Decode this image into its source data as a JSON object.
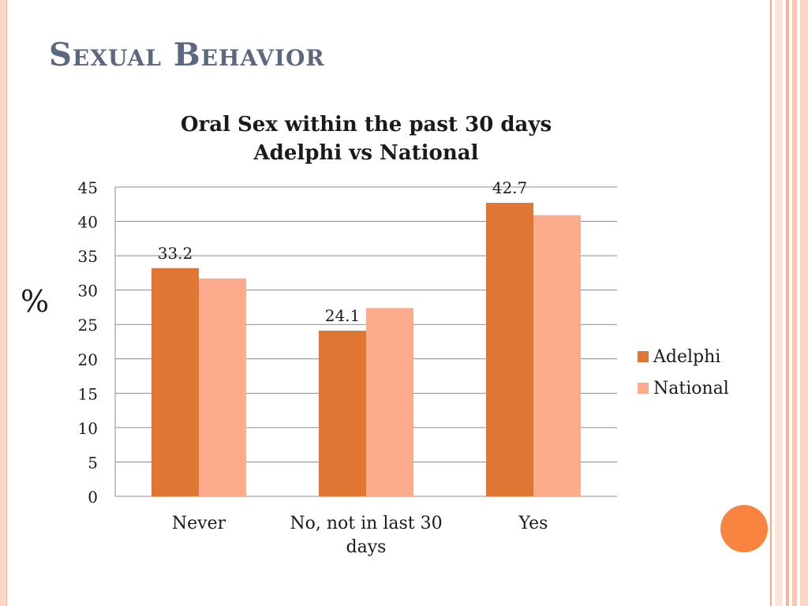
{
  "slide": {
    "title": "Sexual Behavior"
  },
  "theme": {
    "title_color": "#5b6880",
    "adelphi_color": "#e07633",
    "national_color": "#fcac8c",
    "accent_circle": "#f8843f",
    "grid_color": "#8c8c8c"
  },
  "chart_data": {
    "type": "bar",
    "title_lines": [
      "Oral Sex within the past 30 days",
      "Adelphi vs National"
    ],
    "ylabel": "%",
    "xlabel": "",
    "categories": [
      "Never",
      "No, not in last 30 days",
      "Yes"
    ],
    "series": [
      {
        "name": "Adelphi",
        "values": [
          33.2,
          24.1,
          42.7
        ],
        "color": "#e07633",
        "show_labels": true
      },
      {
        "name": "National",
        "values": [
          31.7,
          27.4,
          40.9
        ],
        "color": "#fcac8c",
        "show_labels": false
      }
    ],
    "ylim": [
      0,
      45
    ],
    "yticks": [
      0,
      5,
      10,
      15,
      20,
      25,
      30,
      35,
      40,
      45
    ],
    "grid": true,
    "legend": "right"
  }
}
